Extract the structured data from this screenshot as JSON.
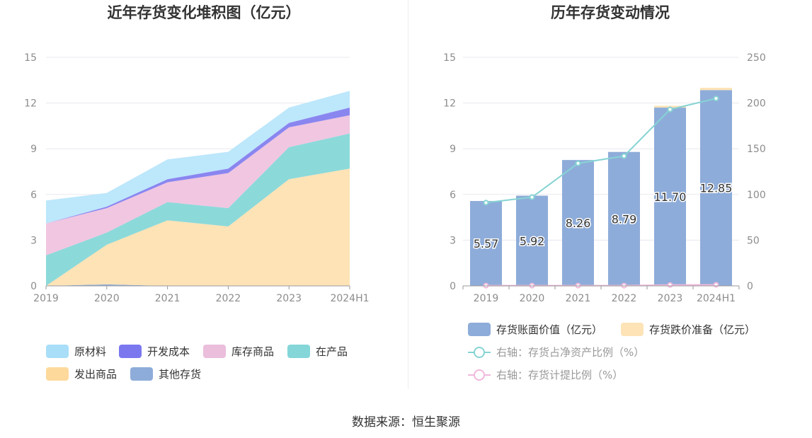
{
  "source_text": "数据来源：恒生聚源",
  "chart_data": [
    {
      "type": "area",
      "title": "近年存货变化堆积图（亿元）",
      "categories": [
        "2019",
        "2020",
        "2021",
        "2022",
        "2023",
        "2024H1"
      ],
      "y_ticks": [
        "0",
        "3",
        "6",
        "9",
        "12",
        "15"
      ],
      "ylim": [
        0,
        15
      ],
      "stacked": true,
      "grid": true,
      "legend_position": "bottom",
      "series": [
        {
          "name": "其他存货",
          "color": "#8eacd9",
          "values": [
            0.0,
            0.1,
            0.0,
            0.0,
            0.0,
            0.0
          ]
        },
        {
          "name": "发出商品",
          "color": "#fde3b6",
          "values": [
            0.0,
            2.6,
            4.3,
            3.9,
            7.0,
            7.7
          ]
        },
        {
          "name": "在产品",
          "color": "#8cd9da",
          "values": [
            2.0,
            0.8,
            1.2,
            1.2,
            2.1,
            2.3
          ]
        },
        {
          "name": "库存商品",
          "color": "#f0c6e1",
          "values": [
            2.1,
            1.6,
            1.3,
            2.3,
            1.3,
            1.2
          ]
        },
        {
          "name": "开发成本",
          "color": "#8a86f0",
          "values": [
            0.0,
            0.1,
            0.2,
            0.3,
            0.3,
            0.5
          ]
        },
        {
          "name": "原材料",
          "color": "#bde7fb",
          "values": [
            1.5,
            0.9,
            1.3,
            1.1,
            1.0,
            1.1
          ]
        }
      ],
      "legend": [
        {
          "name": "原材料",
          "color": "#a8def8"
        },
        {
          "name": "开发成本",
          "color": "#7b78ef"
        },
        {
          "name": "库存商品",
          "color": "#ebbedb"
        },
        {
          "name": "在产品",
          "color": "#84d6d8"
        },
        {
          "name": "发出商品",
          "color": "#fdd99b"
        },
        {
          "name": "其他存货",
          "color": "#8eacd9"
        }
      ]
    },
    {
      "type": "bar",
      "title": "历年存货变动情况",
      "categories": [
        "2019",
        "2020",
        "2021",
        "2022",
        "2023",
        "2024H1"
      ],
      "y_ticks_left": [
        "0",
        "3",
        "6",
        "9",
        "12",
        "15"
      ],
      "y_ticks_right": [
        "0",
        "50",
        "100",
        "150",
        "200",
        "250"
      ],
      "ylim_left": [
        0,
        15
      ],
      "ylim_right": [
        0,
        250
      ],
      "grid": true,
      "legend_position": "bottom",
      "series": [
        {
          "name": "存货账面价值（亿元）",
          "color": "#8eacd9",
          "axis": "left",
          "kind": "bar",
          "values": [
            5.57,
            5.92,
            8.26,
            8.79,
            11.7,
            12.85
          ],
          "labels": [
            "5.57",
            "5.92",
            "8.26",
            "8.79",
            "11.70",
            "12.85"
          ]
        },
        {
          "name": "存货跌价准备（亿元）",
          "color": "#fde3b6",
          "axis": "left",
          "kind": "bar",
          "values": [
            0.0,
            0.0,
            0.0,
            0.0,
            0.12,
            0.15
          ]
        },
        {
          "name": "右轴：存货占净资产比例（%）",
          "color": "#86d3d4",
          "axis": "right",
          "kind": "line",
          "values": [
            91,
            97,
            134,
            142,
            193,
            205
          ]
        },
        {
          "name": "右轴：存货计提比例（%）",
          "color": "#f0b8dc",
          "axis": "right",
          "kind": "line",
          "values": [
            0.3,
            0.3,
            0.3,
            0.3,
            1.0,
            1.2
          ]
        }
      ]
    }
  ]
}
